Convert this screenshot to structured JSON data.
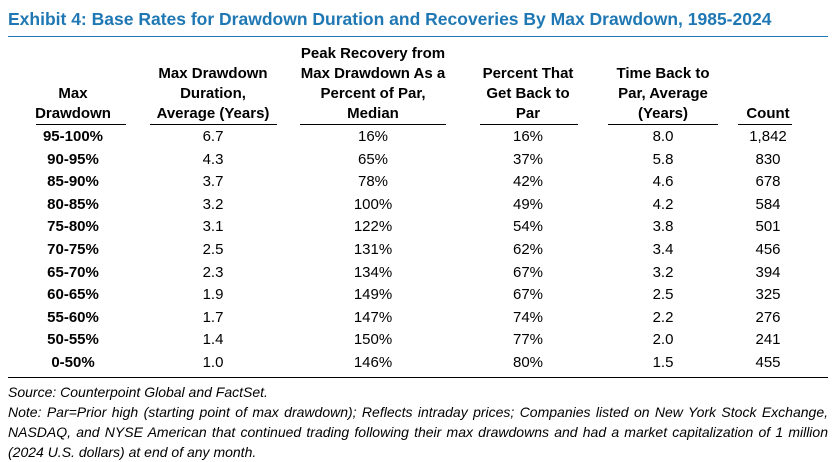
{
  "title": "Exhibit 4: Base Rates for Drawdown Duration and Recoveries By Max Drawdown, 1985-2024",
  "columns": [
    "Max\nDrawdown",
    "Max Drawdown\nDuration,\nAverage (Years)",
    "Peak Recovery from\nMax Drawdown As a\nPercent of Par,\nMedian",
    "Percent That\nGet Back to\nPar",
    "Time Back to\nPar, Average\n(Years)",
    "Count"
  ],
  "rows": [
    [
      "95-100%",
      "6.7",
      "16%",
      "16%",
      "8.0",
      "1,842"
    ],
    [
      "90-95%",
      "4.3",
      "65%",
      "37%",
      "5.8",
      "830"
    ],
    [
      "85-90%",
      "3.7",
      "78%",
      "42%",
      "4.6",
      "678"
    ],
    [
      "80-85%",
      "3.2",
      "100%",
      "49%",
      "4.2",
      "584"
    ],
    [
      "75-80%",
      "3.1",
      "122%",
      "54%",
      "3.8",
      "501"
    ],
    [
      "70-75%",
      "2.5",
      "131%",
      "62%",
      "3.4",
      "456"
    ],
    [
      "65-70%",
      "2.3",
      "134%",
      "67%",
      "3.2",
      "394"
    ],
    [
      "60-65%",
      "1.9",
      "149%",
      "67%",
      "2.5",
      "325"
    ],
    [
      "55-60%",
      "1.7",
      "147%",
      "74%",
      "2.2",
      "276"
    ],
    [
      "50-55%",
      "1.4",
      "150%",
      "77%",
      "2.0",
      "241"
    ],
    [
      "0-50%",
      "1.0",
      "146%",
      "80%",
      "1.5",
      "455"
    ]
  ],
  "source": "Source: Counterpoint Global and FactSet.",
  "note": "Note: Par=Prior high (starting point of max drawdown); Reflects intraday prices; Companies listed on New York Stock Exchange, NASDAQ, and NYSE American that continued trading following their max drawdowns and had a market capitalization of 1 million (2024 U.S. dollars) at end of any month.",
  "colors": {
    "title": "#1f78b4",
    "text": "#000000"
  }
}
